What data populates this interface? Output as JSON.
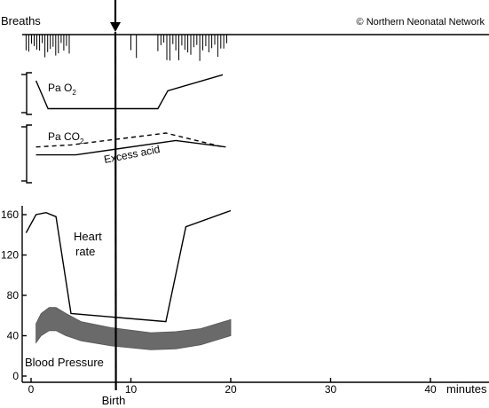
{
  "copyright": "© Northern Neonatal Network",
  "labels": {
    "breaths": "Breaths",
    "pao2_main": "Pa O",
    "pao2_sub": "2",
    "paco2_main": "Pa CO",
    "paco2_sub": "2",
    "excess_acid": "Excess acid",
    "heart_rate_1": "Heart",
    "heart_rate_2": "rate",
    "blood_pressure": "Blood Pressure",
    "birth": "Birth",
    "x_unit": "minutes"
  },
  "chart_data": {
    "type": "line",
    "x_ticks": [
      0,
      10,
      20,
      30,
      40
    ],
    "x_unit_label": "minutes",
    "xlim": [
      0,
      45
    ],
    "y_ticks": [
      0,
      40,
      80,
      120,
      160
    ],
    "ylim": [
      0,
      170
    ],
    "birth_marker_x": 8.5,
    "series": [
      {
        "key": "heart_rate",
        "x": [
          -0.5,
          0.5,
          1.5,
          2.5,
          4.0,
          13.5,
          15.5,
          20.0
        ],
        "values": [
          142,
          160,
          162,
          158,
          62,
          54,
          148,
          164
        ]
      },
      {
        "key": "bp_upper",
        "x": [
          0.5,
          1.0,
          1.8,
          2.5,
          3.5,
          5.0,
          8.0,
          12.0,
          14.5,
          17.0,
          20.0
        ],
        "values": [
          52,
          62,
          68,
          68,
          62,
          54,
          48,
          43,
          44,
          47,
          56
        ]
      },
      {
        "key": "bp_lower",
        "x": [
          0.5,
          1.0,
          1.8,
          2.5,
          3.5,
          5.0,
          8.0,
          12.0,
          14.5,
          17.0,
          20.0
        ],
        "values": [
          33,
          40,
          45,
          45,
          40,
          35,
          30,
          26,
          27,
          31,
          40
        ]
      },
      {
        "key": "pao2",
        "x": [
          0.5,
          1.7,
          12.7,
          13.7,
          19.2
        ],
        "values": [
          0.8,
          0.1,
          0.1,
          0.55,
          0.95
        ]
      },
      {
        "key": "paco2",
        "x": [
          0.5,
          4.5,
          14.5,
          19.5
        ],
        "values": [
          0.56,
          0.56,
          0.85,
          0.72
        ]
      },
      {
        "key": "excess_acid",
        "x": [
          0.5,
          4.0,
          13.5,
          19.0
        ],
        "values": [
          0.72,
          0.76,
          1.0,
          0.73
        ]
      }
    ],
    "breaths_first_period_minutes": [
      -0.5,
      4.0
    ],
    "breaths_second_period_minutes": [
      10.0,
      19.8
    ]
  }
}
